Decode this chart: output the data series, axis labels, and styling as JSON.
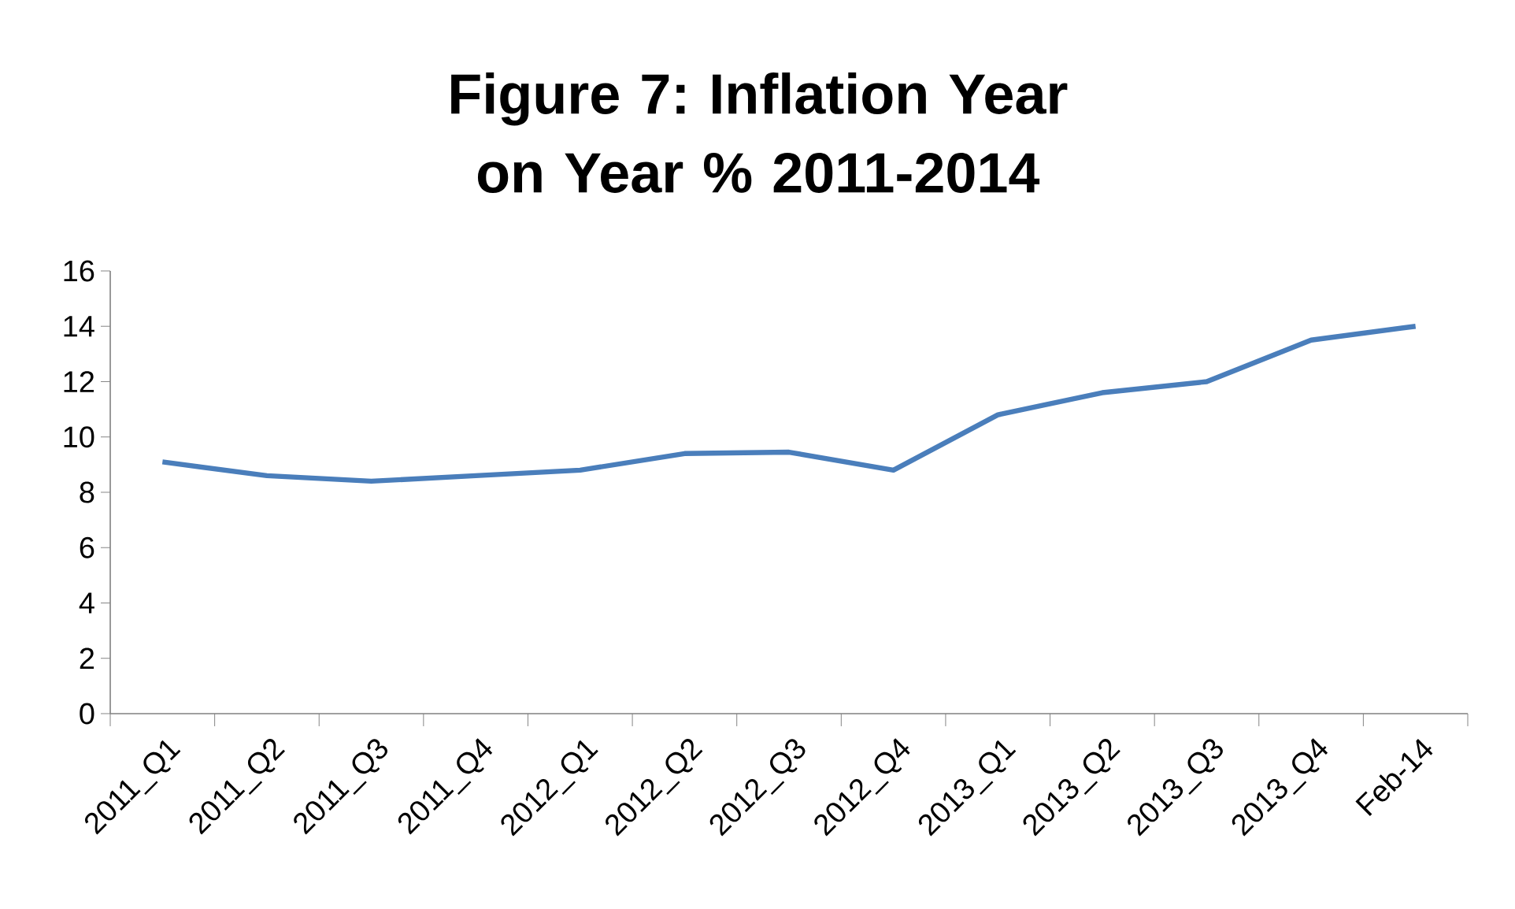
{
  "chart_data": {
    "type": "line",
    "title": "Figure 7: Inflation Year on Year % 2011-2014",
    "categories": [
      "2011_Q1",
      "2011_Q2",
      "2011_Q3",
      "2011_Q4",
      "2012_Q1",
      "2012_Q2",
      "2012_Q3",
      "2012_Q4",
      "2013_Q1",
      "2013_Q2",
      "2013_Q3",
      "2013_Q4",
      "Feb-14"
    ],
    "values": [
      9.1,
      8.6,
      8.4,
      8.6,
      8.8,
      9.4,
      9.45,
      8.8,
      10.8,
      11.6,
      12.0,
      13.5,
      14.0
    ],
    "color": "#4a7ebb",
    "ylim": [
      0,
      16
    ],
    "yticks": [
      0,
      2,
      4,
      6,
      8,
      10,
      12,
      14,
      16
    ],
    "grid": false,
    "marker": "none",
    "line_style": "solid"
  }
}
